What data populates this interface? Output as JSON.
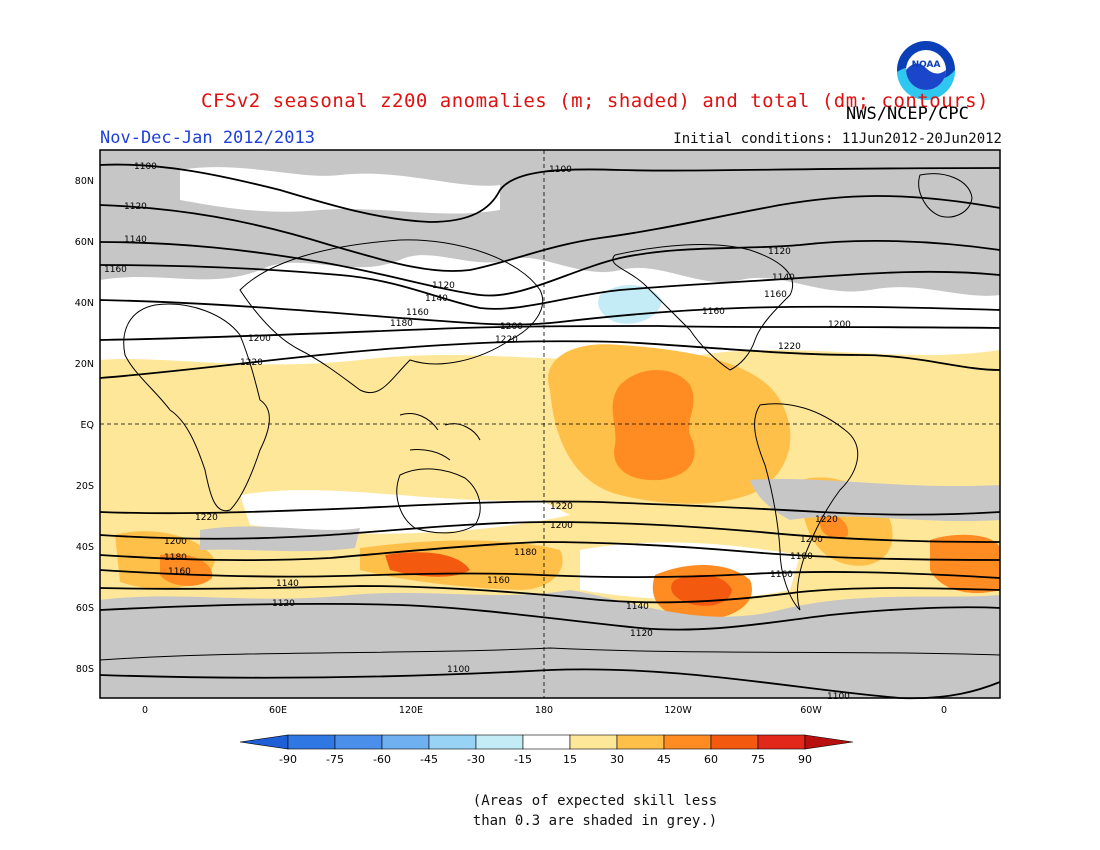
{
  "header": {
    "title": "CFSv2 seasonal z200 anomalies (m; shaded) and total (dm; contours)",
    "subtitle": "Nov-Dec-Jan 2012/2013",
    "initial_conditions": "Initial conditions: 11Jun2012-20Jun2012",
    "agency": "NWS/NCEP/CPC",
    "logo_text": "NOAA"
  },
  "map": {
    "lat_labels": [
      "80N",
      "60N",
      "40N",
      "20N",
      "EQ",
      "20S",
      "40S",
      "60S",
      "80S"
    ],
    "lon_labels": [
      "0",
      "60E",
      "120E",
      "180",
      "120W",
      "60W",
      "0"
    ],
    "contour_labels": [
      "1100",
      "1120",
      "1140",
      "1160",
      "1180",
      "1200",
      "1220"
    ],
    "colors": {
      "grey_skill": "#c6c6c6",
      "ocean_land_bg": "#ffffff"
    }
  },
  "colorbar": {
    "labels": [
      "-90",
      "-75",
      "-60",
      "-45",
      "-30",
      "-15",
      "15",
      "30",
      "45",
      "60",
      "75",
      "90"
    ],
    "colors": [
      "#1f5fd6",
      "#2f78e4",
      "#4a8fea",
      "#6fb0f0",
      "#98d2f5",
      "#c4ecf7",
      "#ffffff",
      "#ffe79a",
      "#ffc04a",
      "#ff8c22",
      "#f35a10",
      "#e1281a",
      "#b80f0f"
    ]
  },
  "note": {
    "line1": "(Areas of expected skill less",
    "line2": "than 0.3 are shaded in grey.)"
  }
}
